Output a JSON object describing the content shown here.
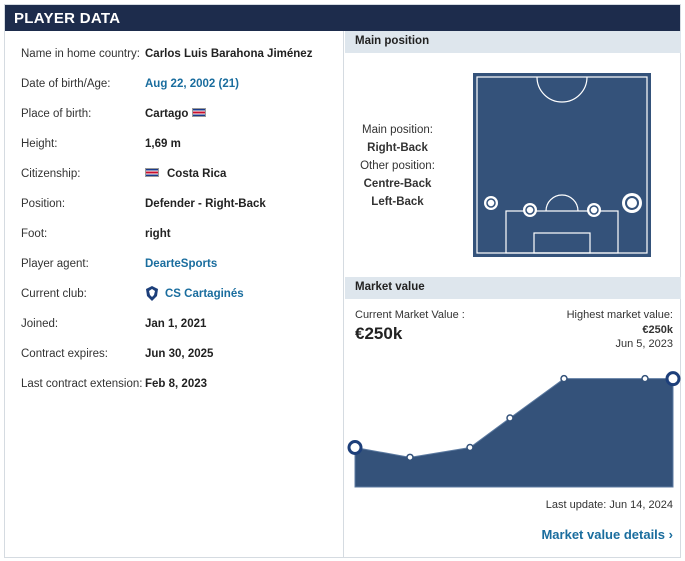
{
  "header": {
    "title": "PLAYER DATA"
  },
  "details": [
    {
      "label": "Name in home country:",
      "value": "Carlos Luis Barahona Jiménez",
      "link": false,
      "flag": false
    },
    {
      "label": "Date of birth/Age:",
      "value": "Aug 22, 2002 (21)",
      "link": true,
      "flag": false
    },
    {
      "label": "Place of birth:",
      "value": "Cartago",
      "link": false,
      "flag": "after"
    },
    {
      "label": "Height:",
      "value": "1,69 m",
      "link": false,
      "flag": false
    },
    {
      "label": "Citizenship:",
      "value": "Costa Rica",
      "link": false,
      "flag": "before"
    },
    {
      "label": "Position:",
      "value": "Defender - Right-Back",
      "link": false,
      "flag": false
    },
    {
      "label": "Foot:",
      "value": "right",
      "link": false,
      "flag": false
    },
    {
      "label": "Player agent:",
      "value": "DearteSports",
      "link": true,
      "flag": false
    },
    {
      "label": "Current club:",
      "value": "CS Cartaginés",
      "link": true,
      "flag": "crest"
    },
    {
      "label": "Joined:",
      "value": "Jan 1, 2021",
      "link": false,
      "flag": false
    },
    {
      "label": "Contract expires:",
      "value": "Jun 30, 2025",
      "link": false,
      "flag": false
    },
    {
      "label": "Last contract extension:",
      "value": "Feb 8, 2023",
      "link": false,
      "flag": false
    }
  ],
  "main_position": {
    "section_title": "Main position",
    "main_label": "Main position:",
    "main_value": "Right-Back",
    "other_label": "Other position:",
    "other_values": [
      "Centre-Back",
      "Left-Back"
    ]
  },
  "market_value": {
    "section_title": "Market value",
    "current_label": "Current Market Value :",
    "current_value": "€250k",
    "highest_label": "Highest market value:",
    "highest_value": "€250k",
    "highest_date": "Jun 5, 2023",
    "last_update": "Last update: Jun 14, 2024",
    "details_link": "Market value details",
    "chart_data": {
      "type": "area",
      "values": [
        75,
        50,
        75,
        150,
        250,
        250,
        250
      ]
    }
  },
  "colors": {
    "header": "#1d2c4c",
    "pitch": "#34527a",
    "link": "#1a6d9e",
    "section": "#dee6ed"
  }
}
